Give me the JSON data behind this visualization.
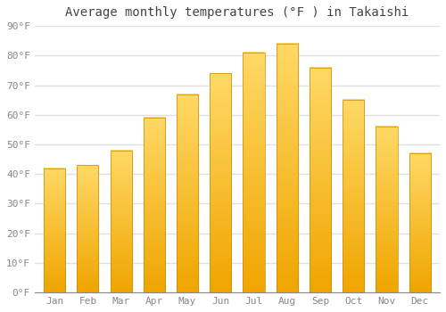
{
  "title": "Average monthly temperatures (°F ) in Takaishi",
  "months": [
    "Jan",
    "Feb",
    "Mar",
    "Apr",
    "May",
    "Jun",
    "Jul",
    "Aug",
    "Sep",
    "Oct",
    "Nov",
    "Dec"
  ],
  "values": [
    42,
    43,
    48,
    59,
    67,
    74,
    81,
    84,
    76,
    65,
    56,
    47
  ],
  "bar_color_top": "#FFD966",
  "bar_color_bottom": "#F0A500",
  "background_color": "#ffffff",
  "plot_bg_color": "#ffffff",
  "ylim": [
    0,
    90
  ],
  "yticks": [
    0,
    10,
    20,
    30,
    40,
    50,
    60,
    70,
    80,
    90
  ],
  "grid_color": "#e0e0e0",
  "title_fontsize": 10,
  "tick_fontsize": 8,
  "bar_width": 0.65
}
